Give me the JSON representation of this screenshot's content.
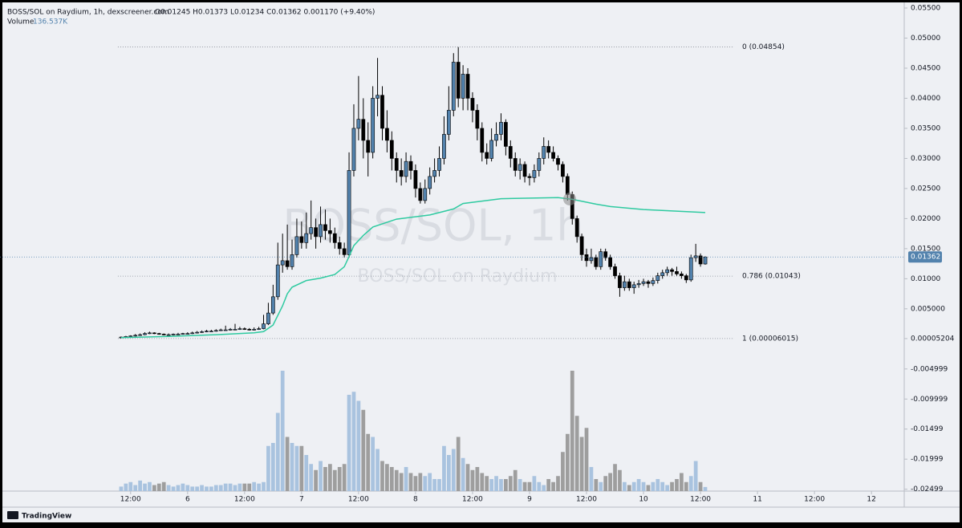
{
  "chart_data": {
    "type": "candlestick",
    "legend_title": "BOSS/SOL on Raydium, 1h, dexscreener.com",
    "ohlc_text": "O0.01245 H0.01373 L0.01234 C0.01362 0.001170 (+9.40%)",
    "volume_label": "Volume",
    "volume_value_label": "136.537K",
    "watermark": "BOSS/SOL, 1h",
    "watermark_subtitle": "BOSS/SOL on Raydium",
    "footer": "TradingView",
    "up_color": "#5282ad",
    "down_color": "#000000",
    "volume_up_color": "#a9c3df",
    "volume_down_color": "#9e9e9e",
    "ma_color": "#2ecaa0",
    "grid": false,
    "xlim": [
      -25.5,
      164.9
    ],
    "ylim": [
      -0.0253,
      0.0558
    ],
    "xticks": [
      {
        "value": 2,
        "label": "12:00"
      },
      {
        "value": 14,
        "label": "6"
      },
      {
        "value": 26,
        "label": "12:00"
      },
      {
        "value": 38,
        "label": "7"
      },
      {
        "value": 50,
        "label": "12:00"
      },
      {
        "value": 62,
        "label": "8"
      },
      {
        "value": 74,
        "label": "12:00"
      },
      {
        "value": 86,
        "label": "9"
      },
      {
        "value": 98,
        "label": "12:00"
      },
      {
        "value": 110,
        "label": "10"
      },
      {
        "value": 122,
        "label": "12:00"
      },
      {
        "value": 134,
        "label": "11"
      },
      {
        "value": 146,
        "label": "12:00"
      },
      {
        "value": 158,
        "label": "12"
      }
    ],
    "yticks": [
      {
        "value": 0.055,
        "label": "0.05500"
      },
      {
        "value": 0.05,
        "label": "0.05000"
      },
      {
        "value": 0.045,
        "label": "0.04500"
      },
      {
        "value": 0.04,
        "label": "0.04000"
      },
      {
        "value": 0.035,
        "label": "0.03500"
      },
      {
        "value": 0.03,
        "label": "0.03000"
      },
      {
        "value": 0.025,
        "label": "0.02500"
      },
      {
        "value": 0.02,
        "label": "0.02000"
      },
      {
        "value": 0.015,
        "label": "0.01500"
      },
      {
        "value": 0.01,
        "label": "0.01000"
      },
      {
        "value": 0.005,
        "label": "0.005000"
      },
      {
        "value": 5.204e-05,
        "label": "0.00005204"
      },
      -0.004999,
      -0.009999,
      -0.01499,
      -0.01999,
      -0.02499
    ],
    "fib_levels": [
      {
        "label": "0 (0.04854)",
        "value": 0.04854
      },
      {
        "label": "0.786 (0.01043)",
        "value": 0.01043
      },
      {
        "label": "1 (0.00006015)",
        "value": 6.015e-05
      }
    ],
    "last_price": {
      "value": 0.01362,
      "label": "0.01362"
    },
    "candles": [
      [
        0.0002,
        0.0004,
        0.0001,
        0.0003
      ],
      [
        0.0003,
        0.0005,
        0.0002,
        0.0004
      ],
      [
        0.0004,
        0.0006,
        0.0003,
        0.0005
      ],
      [
        0.0005,
        0.0008,
        0.0004,
        0.0006
      ],
      [
        0.0006,
        0.0009,
        0.0005,
        0.0007
      ],
      [
        0.0007,
        0.0011,
        0.0006,
        0.0009
      ],
      [
        0.0009,
        0.0012,
        0.0008,
        0.001
      ],
      [
        0.001,
        0.0011,
        0.0008,
        0.0009
      ],
      [
        0.0009,
        0.001,
        0.0007,
        0.0008
      ],
      [
        0.0008,
        0.0009,
        0.0006,
        0.0007
      ],
      [
        0.0007,
        0.0009,
        0.0006,
        0.0007
      ],
      [
        0.0007,
        0.0009,
        0.0006,
        0.0008
      ],
      [
        0.0008,
        0.001,
        0.0007,
        0.0008
      ],
      [
        0.0008,
        0.001,
        0.0007,
        0.0009
      ],
      [
        0.0009,
        0.0011,
        0.0008,
        0.0009
      ],
      [
        0.0009,
        0.0012,
        0.0008,
        0.001
      ],
      [
        0.001,
        0.0013,
        0.0009,
        0.0011
      ],
      [
        0.0011,
        0.0014,
        0.001,
        0.0012
      ],
      [
        0.0012,
        0.0015,
        0.0011,
        0.0013
      ],
      [
        0.0013,
        0.0015,
        0.0012,
        0.0013
      ],
      [
        0.0013,
        0.0016,
        0.0012,
        0.0014
      ],
      [
        0.0014,
        0.0017,
        0.0013,
        0.0015
      ],
      [
        0.0015,
        0.0022,
        0.0014,
        0.0015
      ],
      [
        0.0015,
        0.0018,
        0.0014,
        0.0016
      ],
      [
        0.0016,
        0.0025,
        0.0015,
        0.0016
      ],
      [
        0.0016,
        0.002,
        0.0015,
        0.0017
      ],
      [
        0.0017,
        0.0019,
        0.0015,
        0.0016
      ],
      [
        0.0016,
        0.0018,
        0.0014,
        0.0015
      ],
      [
        0.0015,
        0.0019,
        0.0014,
        0.0016
      ],
      [
        0.0016,
        0.002,
        0.0015,
        0.0017
      ],
      [
        0.0017,
        0.004,
        0.0016,
        0.0025
      ],
      [
        0.0025,
        0.006,
        0.0023,
        0.0043
      ],
      [
        0.0043,
        0.009,
        0.004,
        0.007
      ],
      [
        0.007,
        0.016,
        0.0065,
        0.0123
      ],
      [
        0.0123,
        0.0175,
        0.011,
        0.013
      ],
      [
        0.013,
        0.019,
        0.0115,
        0.012
      ],
      [
        0.012,
        0.0165,
        0.0115,
        0.014
      ],
      [
        0.014,
        0.02,
        0.0135,
        0.017
      ],
      [
        0.017,
        0.0195,
        0.015,
        0.016
      ],
      [
        0.016,
        0.021,
        0.015,
        0.0175
      ],
      [
        0.0175,
        0.023,
        0.0165,
        0.0185
      ],
      [
        0.0185,
        0.02,
        0.015,
        0.017
      ],
      [
        0.017,
        0.022,
        0.016,
        0.019
      ],
      [
        0.019,
        0.0215,
        0.0165,
        0.018
      ],
      [
        0.018,
        0.02,
        0.016,
        0.0175
      ],
      [
        0.0175,
        0.0185,
        0.015,
        0.016
      ],
      [
        0.016,
        0.017,
        0.014,
        0.015
      ],
      [
        0.015,
        0.016,
        0.0135,
        0.014
      ],
      [
        0.014,
        0.031,
        0.0135,
        0.028
      ],
      [
        0.028,
        0.039,
        0.027,
        0.035
      ],
      [
        0.035,
        0.0437,
        0.033,
        0.0365
      ],
      [
        0.0365,
        0.04,
        0.03,
        0.033
      ],
      [
        0.033,
        0.036,
        0.027,
        0.031
      ],
      [
        0.031,
        0.042,
        0.03,
        0.04
      ],
      [
        0.04,
        0.0467,
        0.037,
        0.0405
      ],
      [
        0.0405,
        0.042,
        0.033,
        0.035
      ],
      [
        0.035,
        0.038,
        0.031,
        0.033
      ],
      [
        0.033,
        0.0345,
        0.028,
        0.03
      ],
      [
        0.03,
        0.031,
        0.026,
        0.028
      ],
      [
        0.028,
        0.03,
        0.0255,
        0.027
      ],
      [
        0.027,
        0.031,
        0.026,
        0.0295
      ],
      [
        0.0295,
        0.0305,
        0.0265,
        0.028
      ],
      [
        0.028,
        0.029,
        0.0235,
        0.025
      ],
      [
        0.025,
        0.026,
        0.0225,
        0.023
      ],
      [
        0.023,
        0.0265,
        0.0225,
        0.025
      ],
      [
        0.025,
        0.0285,
        0.024,
        0.027
      ],
      [
        0.027,
        0.03,
        0.026,
        0.028
      ],
      [
        0.028,
        0.032,
        0.027,
        0.03
      ],
      [
        0.03,
        0.037,
        0.029,
        0.034
      ],
      [
        0.034,
        0.042,
        0.033,
        0.038
      ],
      [
        0.038,
        0.0475,
        0.037,
        0.046
      ],
      [
        0.046,
        0.0485,
        0.0385,
        0.04
      ],
      [
        0.04,
        0.0455,
        0.038,
        0.044
      ],
      [
        0.044,
        0.045,
        0.038,
        0.04
      ],
      [
        0.04,
        0.041,
        0.036,
        0.038
      ],
      [
        0.038,
        0.039,
        0.033,
        0.035
      ],
      [
        0.035,
        0.036,
        0.0295,
        0.031
      ],
      [
        0.031,
        0.0325,
        0.029,
        0.03
      ],
      [
        0.03,
        0.035,
        0.0295,
        0.033
      ],
      [
        0.033,
        0.036,
        0.032,
        0.034
      ],
      [
        0.034,
        0.0375,
        0.033,
        0.036
      ],
      [
        0.036,
        0.0365,
        0.0305,
        0.032
      ],
      [
        0.032,
        0.033,
        0.0285,
        0.03
      ],
      [
        0.03,
        0.031,
        0.027,
        0.028
      ],
      [
        0.028,
        0.03,
        0.0265,
        0.029
      ],
      [
        0.029,
        0.0295,
        0.026,
        0.027
      ],
      [
        0.027,
        0.0275,
        0.0255,
        0.0268
      ],
      [
        0.0268,
        0.029,
        0.026,
        0.028
      ],
      [
        0.028,
        0.031,
        0.027,
        0.03
      ],
      [
        0.03,
        0.0335,
        0.029,
        0.032
      ],
      [
        0.032,
        0.033,
        0.03,
        0.031
      ],
      [
        0.031,
        0.032,
        0.0295,
        0.03
      ],
      [
        0.03,
        0.0305,
        0.028,
        0.029
      ],
      [
        0.029,
        0.0295,
        0.026,
        0.027
      ],
      [
        0.027,
        0.0275,
        0.023,
        0.024
      ],
      [
        0.024,
        0.0245,
        0.019,
        0.02
      ],
      [
        0.02,
        0.0205,
        0.016,
        0.017
      ],
      [
        0.017,
        0.0175,
        0.013,
        0.014
      ],
      [
        0.014,
        0.015,
        0.012,
        0.013
      ],
      [
        0.013,
        0.015,
        0.0125,
        0.0135
      ],
      [
        0.0135,
        0.014,
        0.0115,
        0.012
      ],
      [
        0.012,
        0.015,
        0.0115,
        0.0145
      ],
      [
        0.0145,
        0.015,
        0.013,
        0.0135
      ],
      [
        0.0135,
        0.014,
        0.0115,
        0.012
      ],
      [
        0.012,
        0.0125,
        0.01,
        0.0105
      ],
      [
        0.0105,
        0.011,
        0.007,
        0.0085
      ],
      [
        0.0085,
        0.0105,
        0.008,
        0.0095
      ],
      [
        0.0095,
        0.01,
        0.008,
        0.0085
      ],
      [
        0.0085,
        0.0095,
        0.0075,
        0.009
      ],
      [
        0.009,
        0.0098,
        0.0085,
        0.0092
      ],
      [
        0.0092,
        0.01,
        0.0088,
        0.0095
      ],
      [
        0.0095,
        0.0098,
        0.0085,
        0.0092
      ],
      [
        0.0092,
        0.0102,
        0.0088,
        0.0097
      ],
      [
        0.0097,
        0.011,
        0.0092,
        0.0105
      ],
      [
        0.0105,
        0.0115,
        0.01,
        0.011
      ],
      [
        0.011,
        0.012,
        0.0105,
        0.0115
      ],
      [
        0.0115,
        0.0118,
        0.0105,
        0.0112
      ],
      [
        0.0112,
        0.012,
        0.0105,
        0.0108
      ],
      [
        0.0108,
        0.0112,
        0.01,
        0.0105
      ],
      [
        0.0105,
        0.0108,
        0.0093,
        0.0098
      ],
      [
        0.0098,
        0.014,
        0.0095,
        0.0135
      ],
      [
        0.0135,
        0.0158,
        0.0128,
        0.0138
      ],
      [
        0.0138,
        0.0142,
        0.012,
        0.01245
      ],
      [
        0.01245,
        0.01373,
        0.01234,
        0.01362
      ]
    ],
    "volume": {
      "vlim": [
        0,
        4400
      ],
      "values": [
        150,
        250,
        300,
        200,
        350,
        250,
        300,
        200,
        250,
        300,
        200,
        150,
        200,
        250,
        200,
        150,
        150,
        200,
        150,
        150,
        200,
        200,
        250,
        250,
        200,
        250,
        250,
        250,
        300,
        250,
        300,
        1500,
        1600,
        2600,
        4000,
        1800,
        1600,
        1500,
        1500,
        1200,
        900,
        700,
        1000,
        800,
        900,
        700,
        800,
        900,
        3200,
        3300,
        3000,
        2700,
        1900,
        1800,
        1400,
        1000,
        900,
        800,
        700,
        600,
        800,
        600,
        500,
        600,
        500,
        600,
        400,
        400,
        1500,
        1200,
        1400,
        1800,
        1100,
        900,
        700,
        800,
        600,
        500,
        400,
        500,
        400,
        400,
        500,
        700,
        400,
        300,
        300,
        500,
        300,
        200,
        400,
        300,
        500,
        1300,
        1900,
        4000,
        2500,
        1800,
        2100,
        800,
        400,
        300,
        500,
        600,
        900,
        700,
        300,
        200,
        300,
        400,
        300,
        200,
        300,
        400,
        300,
        200,
        300,
        400,
        600,
        300,
        500,
        1000,
        300,
        136.537
      ]
    },
    "ma": {
      "x": [
        0,
        10,
        20,
        28,
        30,
        32,
        34,
        35,
        36,
        39,
        42,
        45,
        47,
        48,
        49,
        51,
        53,
        58,
        65,
        70,
        72,
        76,
        80,
        92,
        95,
        100,
        103,
        110,
        123
      ],
      "values": [
        0.0002,
        0.0004,
        0.0007,
        0.001,
        0.0012,
        0.0023,
        0.0055,
        0.0075,
        0.0086,
        0.0097,
        0.0101,
        0.0107,
        0.012,
        0.0137,
        0.0155,
        0.0172,
        0.0186,
        0.0199,
        0.0206,
        0.0216,
        0.0225,
        0.0229,
        0.0233,
        0.0235,
        0.0232,
        0.0224,
        0.022,
        0.0215,
        0.021
      ]
    }
  }
}
